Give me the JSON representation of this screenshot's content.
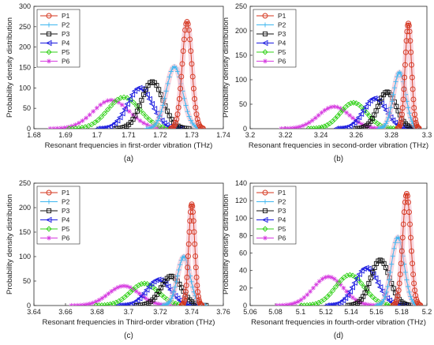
{
  "chart_data": [
    {
      "type": "line",
      "panel_label": "(a)",
      "xlabel": "Resonant frequencies in first-order vibration (THz)",
      "ylabel": "Probability density distribution",
      "xlim": [
        1.68,
        1.74
      ],
      "ylim": [
        0,
        300
      ],
      "xticks": [
        "1.68",
        "1.69",
        "1.7",
        "1.71",
        "1.72",
        "1.73",
        "1.74"
      ],
      "yticks": [
        "0",
        "50",
        "100",
        "150",
        "200",
        "250",
        "300"
      ],
      "legend_position": "top-left",
      "series": [
        {
          "name": "P1",
          "peak_x": 1.7285,
          "peak_y": 262,
          "sigma": 0.0015
        },
        {
          "name": "P2",
          "peak_x": 1.7245,
          "peak_y": 152,
          "sigma": 0.0026
        },
        {
          "name": "P3",
          "peak_x": 1.7175,
          "peak_y": 115,
          "sigma": 0.0034
        },
        {
          "name": "P4",
          "peak_x": 1.7135,
          "peak_y": 100,
          "sigma": 0.0039
        },
        {
          "name": "P5",
          "peak_x": 1.7085,
          "peak_y": 77,
          "sigma": 0.0051
        },
        {
          "name": "P6",
          "peak_x": 1.7045,
          "peak_y": 70,
          "sigma": 0.0057
        }
      ]
    },
    {
      "type": "line",
      "panel_label": "(b)",
      "xlabel": "Resonant frequencies in second-order vibration (THz)",
      "ylabel": "Probability density distribution",
      "xlim": [
        3.2,
        3.3
      ],
      "ylim": [
        0,
        250
      ],
      "xticks": [
        "3.2",
        "3.22",
        "3.24",
        "3.26",
        "3.28",
        "3.3"
      ],
      "yticks": [
        "0",
        "50",
        "100",
        "150",
        "200",
        "250"
      ],
      "legend_position": "top-left",
      "series": [
        {
          "name": "P1",
          "peak_x": 3.2895,
          "peak_y": 215,
          "sigma": 0.0018
        },
        {
          "name": "P2",
          "peak_x": 3.2845,
          "peak_y": 115,
          "sigma": 0.0035
        },
        {
          "name": "P3",
          "peak_x": 3.2775,
          "peak_y": 75,
          "sigma": 0.0052
        },
        {
          "name": "P4",
          "peak_x": 3.2705,
          "peak_y": 62,
          "sigma": 0.0064
        },
        {
          "name": "P5",
          "peak_x": 3.2585,
          "peak_y": 53,
          "sigma": 0.0075
        },
        {
          "name": "P6",
          "peak_x": 3.2475,
          "peak_y": 45,
          "sigma": 0.0088
        }
      ]
    },
    {
      "type": "line",
      "panel_label": "(c)",
      "xlabel": "Resonant frequencies in Third-order vibration (THz)",
      "ylabel": "Probability density distribution",
      "xlim": [
        3.64,
        3.76
      ],
      "ylim": [
        0,
        250
      ],
      "xticks": [
        "3.64",
        "3.66",
        "3.68",
        "3.7",
        "3.72",
        "3.74",
        "3.76"
      ],
      "yticks": [
        "0",
        "50",
        "100",
        "150",
        "200",
        "250"
      ],
      "legend_position": "top-left",
      "series": [
        {
          "name": "P1",
          "peak_x": 3.74,
          "peak_y": 207,
          "sigma": 0.0019
        },
        {
          "name": "P2",
          "peak_x": 3.735,
          "peak_y": 100,
          "sigma": 0.004
        },
        {
          "name": "P3",
          "peak_x": 3.727,
          "peak_y": 60,
          "sigma": 0.0065
        },
        {
          "name": "P4",
          "peak_x": 3.719,
          "peak_y": 53,
          "sigma": 0.0075
        },
        {
          "name": "P5",
          "peak_x": 3.71,
          "peak_y": 45,
          "sigma": 0.009
        },
        {
          "name": "P6",
          "peak_x": 3.697,
          "peak_y": 40,
          "sigma": 0.0098
        }
      ]
    },
    {
      "type": "line",
      "panel_label": "(d)",
      "xlabel": "Resonant frequencies in fourth-order vibration (THz)",
      "ylabel": "Probability density distribution",
      "xlim": [
        5.06,
        5.2
      ],
      "ylim": [
        0,
        140
      ],
      "xticks": [
        "5.06",
        "5.08",
        "5.1",
        "5.12",
        "5.14",
        "5.16",
        "5.18",
        "5.2"
      ],
      "yticks": [
        "0",
        "20",
        "40",
        "60",
        "80",
        "100",
        "120",
        "140"
      ],
      "legend_position": "top-left",
      "series": [
        {
          "name": "P1",
          "peak_x": 5.184,
          "peak_y": 128,
          "sigma": 0.0032
        },
        {
          "name": "P2",
          "peak_x": 5.177,
          "peak_y": 78,
          "sigma": 0.005
        },
        {
          "name": "P3",
          "peak_x": 5.163,
          "peak_y": 52,
          "sigma": 0.0075
        },
        {
          "name": "P4",
          "peak_x": 5.152,
          "peak_y": 43,
          "sigma": 0.0092
        },
        {
          "name": "P5",
          "peak_x": 5.139,
          "peak_y": 35,
          "sigma": 0.0113
        },
        {
          "name": "P6",
          "peak_x": 5.122,
          "peak_y": 33,
          "sigma": 0.012
        }
      ]
    }
  ],
  "colors": {
    "P1": "#d4351c",
    "P2": "#3cb6f0",
    "P3": "#111111",
    "P4": "#1a1ae0",
    "P5": "#33d11a",
    "P6": "#d63be0",
    "halo": "#f2b6c8"
  },
  "markers": {
    "P1": "circle",
    "P2": "plus",
    "P3": "square",
    "P4": "left-triangle",
    "P5": "diamond",
    "P6": "asterisk"
  }
}
